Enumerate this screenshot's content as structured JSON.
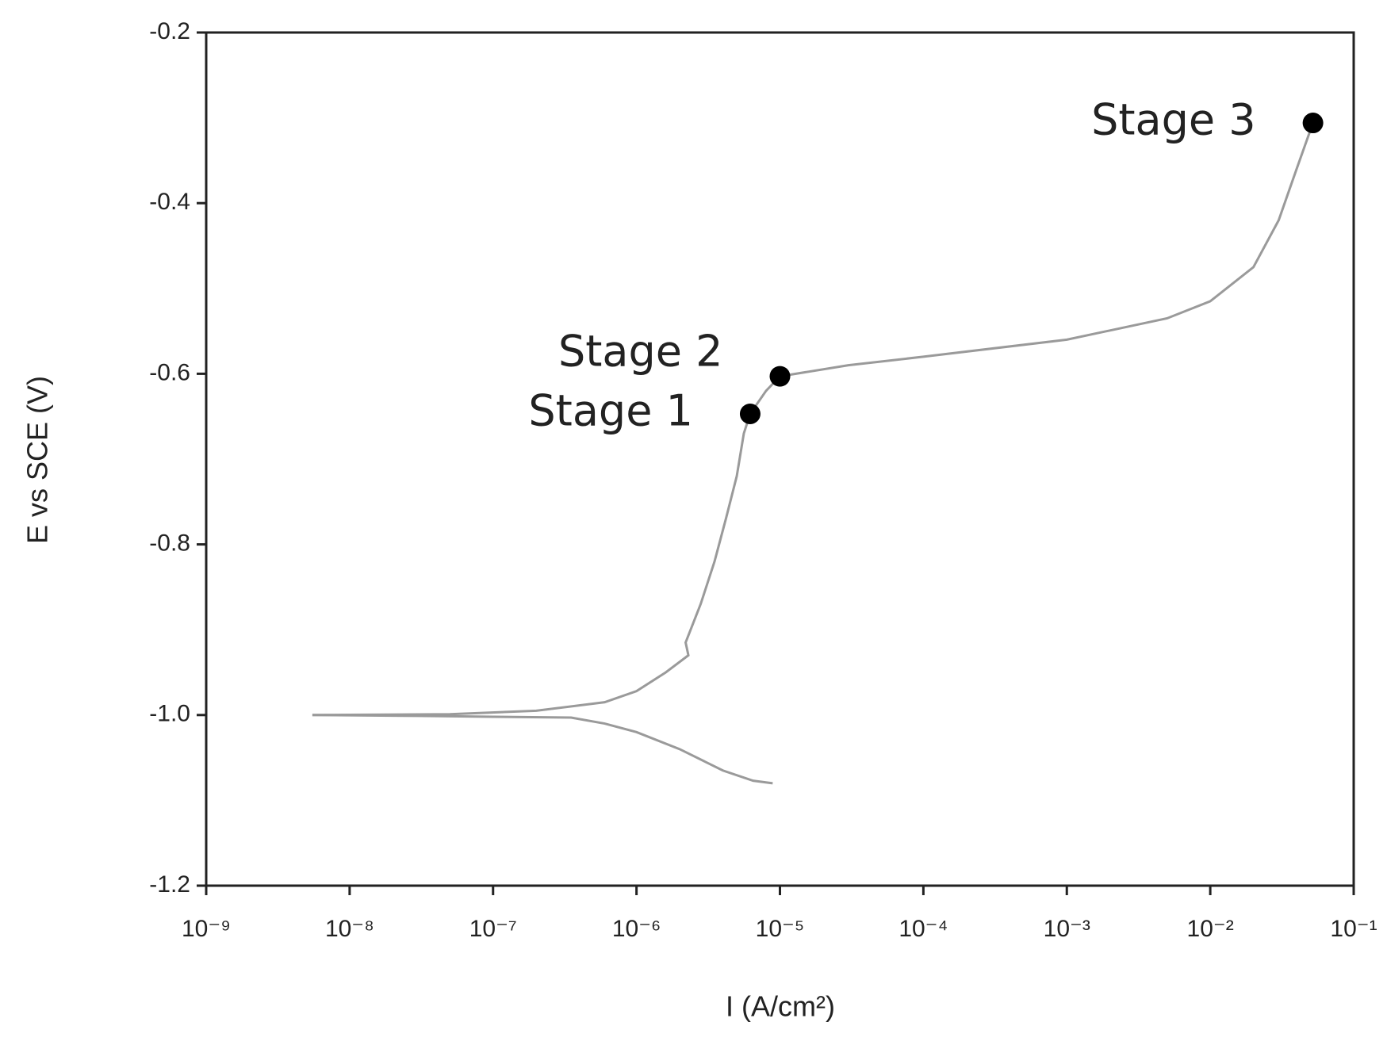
{
  "chart_data": {
    "type": "line",
    "x_label": "I (A/cm²)",
    "y_label": "E vs SCE (V)",
    "xscale": "log",
    "xlim": [
      1e-09,
      0.1
    ],
    "xticks": [
      {
        "value": 1e-09,
        "label": "10⁻⁹"
      },
      {
        "value": 1e-08,
        "label": "10⁻⁸"
      },
      {
        "value": 1e-07,
        "label": "10⁻⁷"
      },
      {
        "value": 1e-06,
        "label": "10⁻⁶"
      },
      {
        "value": 1e-05,
        "label": "10⁻⁵"
      },
      {
        "value": 0.0001,
        "label": "10⁻⁴"
      },
      {
        "value": 0.001,
        "label": "10⁻³"
      },
      {
        "value": 0.01,
        "label": "10⁻²"
      },
      {
        "value": 0.1,
        "label": "10⁻¹"
      }
    ],
    "ylim": [
      -1.2,
      -0.2
    ],
    "yticks": [
      -0.2,
      -0.4,
      -0.6,
      -0.8,
      {
        "value": -1,
        "label": "-1.0"
      },
      -1.2
    ],
    "series": [
      {
        "color": "#9a9a9a",
        "x": [
          5.5e-09,
          3e-08,
          1e-07,
          3.5e-07,
          6e-07,
          1e-06,
          2e-06,
          4e-06,
          6.5e-06,
          8.9e-06
        ],
        "values": [
          -1.0,
          -1.001,
          -1.002,
          -1.003,
          -1.01,
          -1.02,
          -1.04,
          -1.065,
          -1.077,
          -1.08
        ]
      },
      {
        "color": "#9a9a9a",
        "x": [
          5.5e-09,
          5e-08,
          2e-07,
          6e-07,
          1e-06,
          1.6e-06,
          2.3e-06,
          2.2e-06,
          2.8e-06,
          3.5e-06,
          4.2e-06,
          5e-06,
          5.6e-06,
          6.2e-06,
          8e-06,
          1e-05,
          3e-05,
          0.0001,
          0.001,
          0.005,
          0.01,
          0.02,
          0.03,
          0.04,
          0.052
        ],
        "values": [
          -1.0,
          -0.999,
          -0.995,
          -0.985,
          -0.972,
          -0.95,
          -0.93,
          -0.915,
          -0.87,
          -0.82,
          -0.77,
          -0.72,
          -0.67,
          -0.647,
          -0.62,
          -0.603,
          -0.59,
          -0.58,
          -0.56,
          -0.535,
          -0.515,
          -0.475,
          -0.42,
          -0.36,
          -0.306
        ]
      }
    ],
    "points": [
      {
        "label": "Stage 1",
        "x": 6.2e-06,
        "y": -0.647
      },
      {
        "label": "Stage 2",
        "x": 1e-05,
        "y": -0.603
      },
      {
        "label": "Stage 3",
        "x": 0.052,
        "y": -0.306
      }
    ],
    "point_color": "#000000"
  }
}
